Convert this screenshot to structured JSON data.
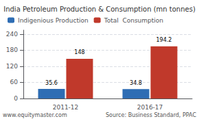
{
  "chart_data": {
    "type": "bar",
    "title": "India Petroleum Production & Consumption (mn tonnes)",
    "categories": [
      "2011-12",
      "2016-17"
    ],
    "series": [
      {
        "name": "Indigenious Production",
        "color": "#2e6db4",
        "values": [
          35.6,
          34.8
        ]
      },
      {
        "name": "Total  Consumption",
        "color": "#c0392b",
        "values": [
          148.0,
          194.2
        ]
      }
    ],
    "ylim": [
      0,
      255
    ],
    "yticks": [
      0,
      60,
      120,
      180,
      240
    ],
    "grid": true,
    "data_labels": true,
    "legend": "upper left",
    "annotations": [
      "www.equitymaster.com",
      "Source: Business Standard, PPAC"
    ]
  }
}
